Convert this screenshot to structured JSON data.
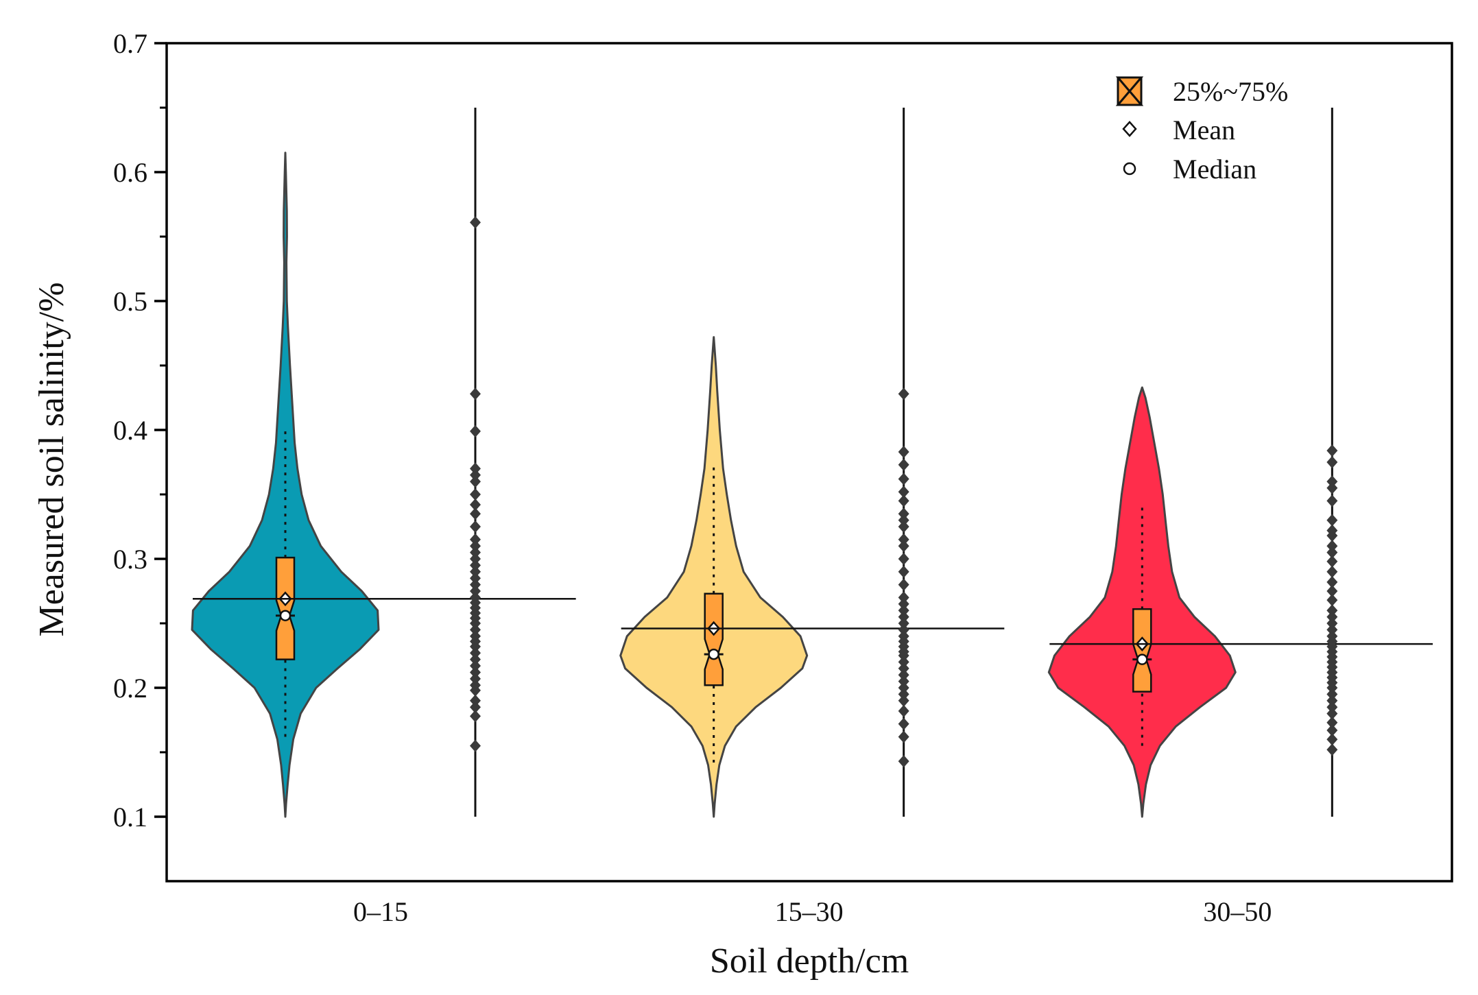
{
  "chart_data": {
    "type": "violin",
    "title": "",
    "xlabel": "Soil depth/cm",
    "ylabel": "Measured soil salinity/%",
    "ylim": [
      0.05,
      0.7
    ],
    "yticks": [
      0.1,
      0.2,
      0.3,
      0.4,
      0.5,
      0.6,
      0.7
    ],
    "ytick_labels": [
      "0.1",
      "0.2",
      "0.3",
      "0.4",
      "0.5",
      "0.6",
      "0.7"
    ],
    "grid": false,
    "legend_position": "top-right",
    "legend": {
      "box": "25%~75%",
      "mean": "Mean",
      "median": "Median"
    },
    "colors": {
      "box": "#FF9F3A",
      "outline": "#444444"
    },
    "categories": [
      "0–15",
      "15–30",
      "30–50"
    ],
    "groups": [
      {
        "label": "0–15",
        "color": "#0A9BB3",
        "q1": 0.222,
        "q3": 0.301,
        "median": 0.256,
        "mean": 0.269,
        "whisker_low": 0.162,
        "whisker_high": 0.4,
        "min": 0.1,
        "max": 0.615,
        "density": [
          [
            0.1,
            0.0
          ],
          [
            0.11,
            0.008
          ],
          [
            0.125,
            0.025
          ],
          [
            0.14,
            0.045
          ],
          [
            0.16,
            0.085
          ],
          [
            0.18,
            0.165
          ],
          [
            0.2,
            0.33
          ],
          [
            0.215,
            0.56
          ],
          [
            0.23,
            0.8
          ],
          [
            0.245,
            1.0
          ],
          [
            0.26,
            0.99
          ],
          [
            0.275,
            0.82
          ],
          [
            0.29,
            0.6
          ],
          [
            0.31,
            0.38
          ],
          [
            0.33,
            0.25
          ],
          [
            0.35,
            0.175
          ],
          [
            0.37,
            0.13
          ],
          [
            0.39,
            0.1
          ],
          [
            0.42,
            0.075
          ],
          [
            0.45,
            0.05
          ],
          [
            0.48,
            0.028
          ],
          [
            0.5,
            0.016
          ],
          [
            0.53,
            0.012
          ],
          [
            0.55,
            0.018
          ],
          [
            0.57,
            0.016
          ],
          [
            0.6,
            0.006
          ],
          [
            0.615,
            0.0
          ]
        ],
        "points": [
          0.155,
          0.178,
          0.185,
          0.19,
          0.198,
          0.202,
          0.207,
          0.212,
          0.217,
          0.222,
          0.227,
          0.232,
          0.236,
          0.24,
          0.245,
          0.25,
          0.254,
          0.258,
          0.262,
          0.266,
          0.27,
          0.275,
          0.28,
          0.285,
          0.29,
          0.295,
          0.3,
          0.305,
          0.31,
          0.315,
          0.325,
          0.335,
          0.342,
          0.35,
          0.36,
          0.365,
          0.37,
          0.399,
          0.428,
          0.561
        ]
      },
      {
        "label": "15–30",
        "color": "#FDD87E",
        "q1": 0.202,
        "q3": 0.273,
        "median": 0.226,
        "mean": 0.246,
        "whisker_low": 0.142,
        "whisker_high": 0.372,
        "min": 0.1,
        "max": 0.472,
        "density": [
          [
            0.1,
            0.0
          ],
          [
            0.11,
            0.01
          ],
          [
            0.125,
            0.03
          ],
          [
            0.14,
            0.06
          ],
          [
            0.155,
            0.12
          ],
          [
            0.17,
            0.24
          ],
          [
            0.185,
            0.45
          ],
          [
            0.2,
            0.72
          ],
          [
            0.215,
            0.95
          ],
          [
            0.225,
            1.0
          ],
          [
            0.24,
            0.93
          ],
          [
            0.255,
            0.74
          ],
          [
            0.27,
            0.5
          ],
          [
            0.29,
            0.32
          ],
          [
            0.31,
            0.24
          ],
          [
            0.33,
            0.185
          ],
          [
            0.35,
            0.14
          ],
          [
            0.37,
            0.1
          ],
          [
            0.4,
            0.065
          ],
          [
            0.43,
            0.038
          ],
          [
            0.45,
            0.022
          ],
          [
            0.472,
            0.0
          ]
        ],
        "points": [
          0.143,
          0.162,
          0.172,
          0.182,
          0.19,
          0.195,
          0.2,
          0.205,
          0.21,
          0.215,
          0.22,
          0.225,
          0.228,
          0.232,
          0.236,
          0.24,
          0.245,
          0.25,
          0.255,
          0.26,
          0.265,
          0.27,
          0.28,
          0.29,
          0.3,
          0.31,
          0.315,
          0.325,
          0.33,
          0.335,
          0.345,
          0.352,
          0.362,
          0.373,
          0.383,
          0.428
        ]
      },
      {
        "label": "30–50",
        "color": "#FF2D4B",
        "q1": 0.197,
        "q3": 0.261,
        "median": 0.222,
        "mean": 0.234,
        "whisker_low": 0.155,
        "whisker_high": 0.34,
        "min": 0.1,
        "max": 0.433,
        "density": [
          [
            0.1,
            0.0
          ],
          [
            0.11,
            0.012
          ],
          [
            0.125,
            0.04
          ],
          [
            0.14,
            0.09
          ],
          [
            0.155,
            0.19
          ],
          [
            0.17,
            0.36
          ],
          [
            0.185,
            0.62
          ],
          [
            0.2,
            0.9
          ],
          [
            0.212,
            1.0
          ],
          [
            0.225,
            0.94
          ],
          [
            0.24,
            0.78
          ],
          [
            0.255,
            0.56
          ],
          [
            0.27,
            0.4
          ],
          [
            0.29,
            0.32
          ],
          [
            0.31,
            0.28
          ],
          [
            0.33,
            0.25
          ],
          [
            0.35,
            0.22
          ],
          [
            0.37,
            0.18
          ],
          [
            0.39,
            0.13
          ],
          [
            0.41,
            0.08
          ],
          [
            0.425,
            0.035
          ],
          [
            0.433,
            0.0
          ]
        ],
        "points": [
          0.152,
          0.16,
          0.167,
          0.173,
          0.18,
          0.185,
          0.19,
          0.195,
          0.2,
          0.204,
          0.208,
          0.212,
          0.216,
          0.22,
          0.224,
          0.228,
          0.232,
          0.236,
          0.24,
          0.245,
          0.25,
          0.255,
          0.26,
          0.268,
          0.275,
          0.282,
          0.29,
          0.298,
          0.305,
          0.31,
          0.318,
          0.322,
          0.33,
          0.345,
          0.355,
          0.36,
          0.375,
          0.384
        ]
      }
    ]
  }
}
